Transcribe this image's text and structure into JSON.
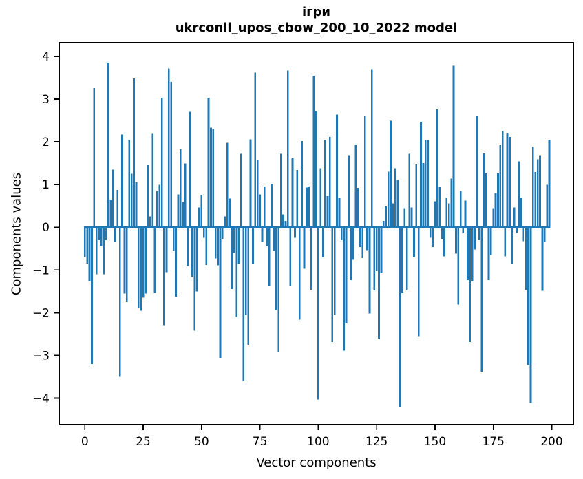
{
  "chart_data": {
    "type": "bar",
    "title_line1": "ігри",
    "title_line2": "ukrconll_upos_cbow_200_10_2022 model",
    "xlabel": "Vector components",
    "ylabel": "Components values",
    "x_ticks": [
      0,
      25,
      50,
      75,
      100,
      125,
      150,
      175,
      200
    ],
    "x_tick_labels": [
      "0",
      "25",
      "50",
      "75",
      "100",
      "125",
      "150",
      "175",
      "200"
    ],
    "y_ticks": [
      -4,
      -3,
      -2,
      -1,
      0,
      1,
      2,
      3,
      4
    ],
    "y_tick_labels": [
      "−4",
      "−3",
      "−2",
      "−1",
      "0",
      "1",
      "2",
      "3",
      "4"
    ],
    "xlim": [
      -11,
      209.3
    ],
    "ylim": [
      -4.62,
      4.32
    ],
    "bar_color": "#1f77b4",
    "axis_color": "#000000",
    "grid": false,
    "legend": null,
    "x_description": "vector component index 0..199",
    "values": [
      -0.7,
      -0.85,
      -1.27,
      -3.2,
      3.26,
      -1.1,
      -0.3,
      -0.45,
      -1.1,
      -0.3,
      3.85,
      0.65,
      1.35,
      -0.35,
      0.87,
      -3.5,
      2.17,
      -1.55,
      -1.75,
      2.05,
      1.25,
      3.48,
      1.05,
      -1.9,
      -1.95,
      -1.65,
      -1.55,
      1.45,
      0.25,
      2.2,
      -1.54,
      0.85,
      0.99,
      3.03,
      -2.29,
      -1.05,
      3.72,
      3.4,
      -0.55,
      -1.62,
      0.77,
      1.82,
      0.59,
      1.49,
      -0.9,
      2.7,
      -1.16,
      -2.42,
      -1.5,
      0.46,
      0.76,
      -0.25,
      -0.88,
      3.03,
      2.33,
      2.3,
      -0.73,
      -0.89,
      -3.06,
      -0.27,
      0.25,
      1.98,
      0.67,
      -1.45,
      -0.6,
      -2.1,
      -0.85,
      1.72,
      -3.6,
      -2.05,
      -2.75,
      2.06,
      -0.87,
      3.62,
      1.58,
      0.77,
      -0.35,
      0.95,
      -0.45,
      -1.38,
      1.02,
      -0.55,
      -1.94,
      -2.93,
      1.72,
      0.3,
      0.15,
      3.67,
      -1.38,
      1.61,
      -0.25,
      1.34,
      -2.16,
      2.02,
      -0.97,
      0.93,
      0.95,
      -1.46,
      3.55,
      2.72,
      -4.03,
      1.38,
      -0.7,
      2.05,
      0.73,
      2.11,
      -2.69,
      -2.05,
      2.64,
      0.68,
      -0.3,
      -2.89,
      -2.25,
      1.69,
      -1.24,
      -0.76,
      1.93,
      0.92,
      -0.46,
      -0.72,
      2.61,
      -0.54,
      -2.02,
      3.7,
      -1.48,
      -1.03,
      -2.61,
      -1.08,
      0.15,
      0.49,
      1.3,
      2.49,
      0.56,
      1.38,
      1.11,
      -4.22,
      -1.54,
      0.45,
      -1.46,
      1.72,
      0.46,
      -0.7,
      1.47,
      -2.55,
      2.47,
      1.5,
      2.04,
      2.04,
      -0.25,
      -0.46,
      0.61,
      2.76,
      0.94,
      -0.27,
      -0.68,
      0.69,
      0.56,
      1.14,
      3.78,
      -0.62,
      -1.81,
      0.85,
      -0.14,
      0.62,
      -1.24,
      -2.69,
      -1.27,
      -0.52,
      2.61,
      -0.3,
      -3.38,
      1.73,
      1.26,
      -1.24,
      -0.65,
      0.45,
      0.8,
      1.26,
      1.92,
      2.25,
      -0.68,
      2.21,
      2.11,
      -0.87,
      0.46,
      -0.14,
      1.54,
      0.69,
      -0.33,
      -1.47,
      -3.23,
      -4.11,
      1.88,
      1.29,
      1.59,
      1.69,
      -1.49,
      -0.35,
      0.99,
      2.05
    ]
  }
}
